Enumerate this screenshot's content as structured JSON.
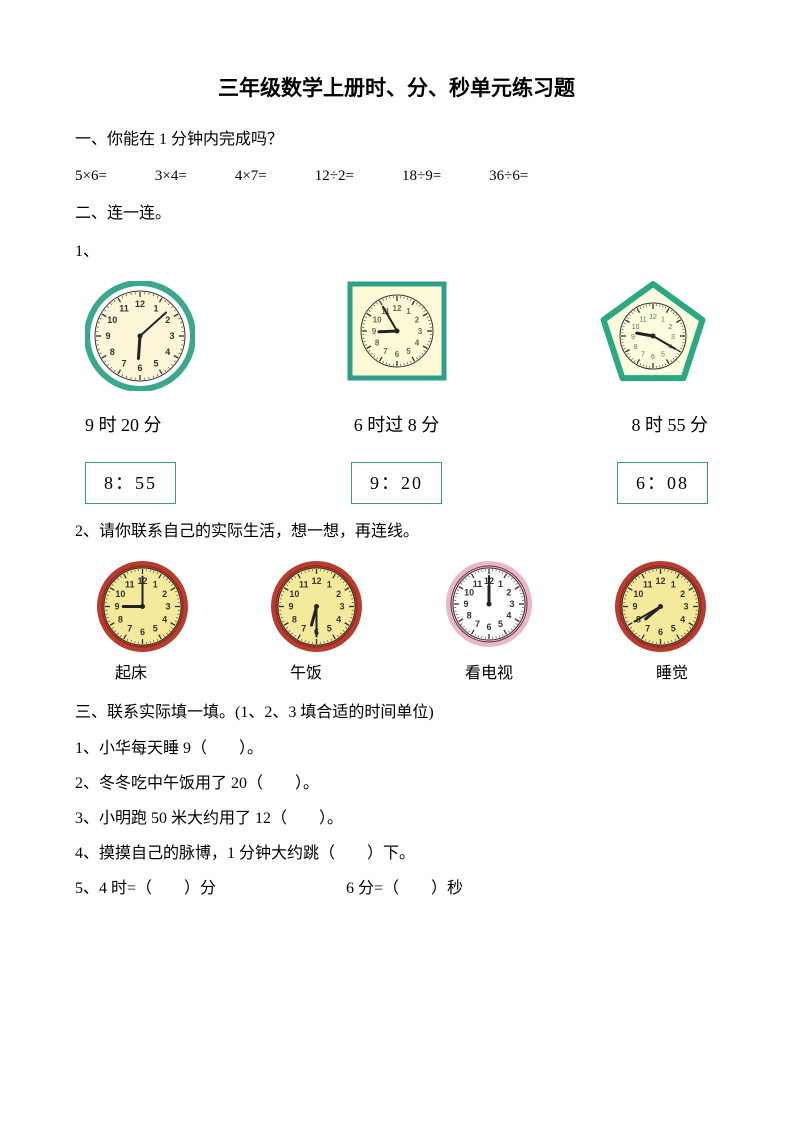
{
  "title": "三年级数学上册时、分、秒单元练习题",
  "section1": {
    "heading": "一、你能在 1 分钟内完成吗？",
    "problems": [
      "5×6=",
      "3×4=",
      "4×7=",
      "12÷2=",
      "18÷9=",
      "36÷6="
    ]
  },
  "section2": {
    "heading": "二、连一连。",
    "sub1": "1、",
    "clocks1": [
      {
        "shape": "circle",
        "border_color": "#3aa88b",
        "face_color": "#fdf5d8",
        "rim_color": "#3aa88b",
        "hour": 6,
        "minute": 8,
        "size": 110
      },
      {
        "shape": "square",
        "border_color": "#2e9f88",
        "face_color": "#fdfad8",
        "rim_color": "#2e9f88",
        "hour": 8,
        "minute": 55,
        "size": 100
      },
      {
        "shape": "pentagon",
        "border_color": "#2aa882",
        "face_color": "#fdfde0",
        "rim_color": "#2aa882",
        "hour": 9,
        "minute": 20,
        "size": 110
      }
    ],
    "time_labels": [
      "9 时 20 分",
      "6 时过 8 分",
      "8 时 55 分"
    ],
    "digital_times": [
      "8：55",
      "9：20",
      "6：08"
    ],
    "digital_border_color": "#3a9a8a",
    "sub2": "2、请你联系自己的实际生活，想一想，再连线。",
    "clocks2": [
      {
        "rim_color": "#b93b2e",
        "face_color": "#f5ea9b",
        "hour": 9,
        "minute": 0,
        "size": 95
      },
      {
        "rim_color": "#b93b2e",
        "face_color": "#f5ea9b",
        "hour": 6,
        "minute": 30,
        "size": 95
      },
      {
        "rim_color": "#e6b8d0",
        "face_color": "#ffffff",
        "hour": 12,
        "minute": 0,
        "size": 90
      },
      {
        "rim_color": "#b93b2e",
        "face_color": "#f5ea9b",
        "hour": 7,
        "minute": 40,
        "size": 95
      }
    ],
    "activities": [
      "起床",
      "午饭",
      "看电视",
      "睡觉"
    ]
  },
  "section3": {
    "heading": "三、联系实际填一填。(1、2、3 填合适的时间单位)",
    "lines": [
      "1、小华每天睡 9（　　）。",
      "2、冬冬吃中午饭用了 20（　　）。",
      "3、小明跑 50 米大约用了 12（　　）。",
      "4、摸摸自己的脉博，1 分钟大约跳（　　）下。"
    ],
    "line5a": "5、4 时=（　　）分",
    "line5b": "6 分=（　　）秒"
  },
  "colors": {
    "text": "#000000",
    "background": "#ffffff"
  }
}
